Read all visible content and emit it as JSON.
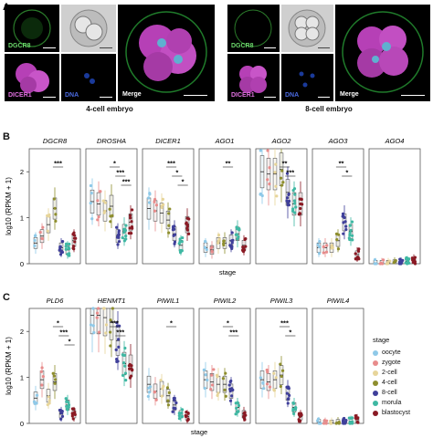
{
  "panel_a": {
    "letter": "A",
    "caption_left": "4-cell embryo",
    "caption_right": "8-cell embryo",
    "channel_labels": {
      "dgcr8": "DGCR8",
      "dicer1": "DICER1",
      "dna": "DNA",
      "merge": "Merge"
    }
  },
  "panel_b": {
    "letter": "B",
    "ylabel": "log10 (RPKM + 1)",
    "xlabel": "stage",
    "yticks": [
      "0",
      "1",
      "2"
    ],
    "genes": [
      "DGCR8",
      "DROSHA",
      "DICER1",
      "AGO1",
      "AGO2",
      "AGO3",
      "AGO4"
    ]
  },
  "panel_c": {
    "letter": "C",
    "ylabel": "log10 (RPKM + 1)",
    "xlabel": "stage",
    "yticks": [
      "0",
      "1",
      "2"
    ],
    "genes": [
      "PLD6",
      "HENMT1",
      "PIWIL1",
      "PIWIL2",
      "PIWIL3",
      "PIWIL4"
    ]
  },
  "legend": {
    "title": "stage",
    "stages": [
      {
        "label": "oocyte",
        "color": "#8fc9e8"
      },
      {
        "label": "zygote",
        "color": "#e88c8c"
      },
      {
        "label": "2-cell",
        "color": "#e7d59a"
      },
      {
        "label": "4-cell",
        "color": "#8e8e2e"
      },
      {
        "label": "8-cell",
        "color": "#3f3f9a"
      },
      {
        "label": "morula",
        "color": "#3fb8a3"
      },
      {
        "label": "blastocyst",
        "color": "#8a1a24"
      }
    ]
  },
  "chart_data": [
    {
      "type": "box",
      "panel": "B",
      "ylabel": "log10 (RPKM + 1)",
      "xlabel": "stage",
      "ylim": [
        0,
        2.5
      ],
      "categories": [
        "oocyte",
        "zygote",
        "2-cell",
        "4-cell",
        "8-cell",
        "morula",
        "blastocyst"
      ],
      "series": [
        {
          "name": "DGCR8",
          "medians": [
            0.45,
            0.6,
            0.85,
            1.2,
            0.35,
            0.3,
            0.5
          ],
          "signif": [
            "***"
          ]
        },
        {
          "name": "DROSHA",
          "medians": [
            1.35,
            1.3,
            1.15,
            1.25,
            0.6,
            0.7,
            0.9
          ],
          "signif": [
            "*",
            "***",
            "***"
          ]
        },
        {
          "name": "DICER1",
          "medians": [
            1.2,
            1.15,
            1.1,
            0.95,
            0.65,
            0.4,
            0.85
          ],
          "signif": [
            "***",
            "*",
            "*"
          ]
        },
        {
          "name": "AGO1",
          "medians": [
            0.35,
            0.3,
            0.45,
            0.45,
            0.5,
            0.65,
            0.4
          ],
          "signif": [
            "**"
          ]
        },
        {
          "name": "AGO2",
          "medians": [
            2.0,
            1.95,
            1.95,
            2.05,
            1.55,
            1.3,
            1.3
          ],
          "signif": [
            "**",
            "***"
          ]
        },
        {
          "name": "AGO3",
          "medians": [
            0.35,
            0.35,
            0.35,
            0.5,
            0.9,
            0.7,
            0.2
          ],
          "signif": [
            "**",
            "*"
          ]
        },
        {
          "name": "AGO4",
          "medians": [
            0.02,
            0.02,
            0.02,
            0.03,
            0.03,
            0.05,
            0.08
          ],
          "signif": []
        }
      ]
    },
    {
      "type": "box",
      "panel": "C",
      "ylabel": "log10 (RPKM + 1)",
      "xlabel": "stage",
      "ylim": [
        0,
        2.5
      ],
      "categories": [
        "oocyte",
        "zygote",
        "2-cell",
        "4-cell",
        "8-cell",
        "morula",
        "blastocyst"
      ],
      "series": [
        {
          "name": "PLD6",
          "medians": [
            0.55,
            0.95,
            0.6,
            0.9,
            0.2,
            0.4,
            0.2
          ],
          "signif": [
            "*",
            "***",
            "*"
          ]
        },
        {
          "name": "HENMT1",
          "medians": [
            2.35,
            2.35,
            2.3,
            2.2,
            1.8,
            1.3,
            1.25
          ],
          "signif": [
            "***",
            "***"
          ]
        },
        {
          "name": "PIWIL1",
          "medians": [
            0.85,
            0.7,
            0.75,
            0.6,
            0.4,
            0.2,
            0.15
          ],
          "signif": [
            "*"
          ]
        },
        {
          "name": "PIWIL2",
          "medians": [
            0.95,
            0.9,
            0.85,
            0.85,
            0.7,
            0.35,
            0.2
          ],
          "signif": [
            "*",
            "***"
          ]
        },
        {
          "name": "PIWIL3",
          "medians": [
            0.95,
            0.9,
            0.95,
            1.05,
            0.65,
            0.35,
            0.15
          ],
          "signif": [
            "***",
            "*"
          ]
        },
        {
          "name": "PIWIL4",
          "medians": [
            0.03,
            0.02,
            0.02,
            0.03,
            0.03,
            0.05,
            0.08
          ],
          "signif": []
        }
      ]
    }
  ]
}
